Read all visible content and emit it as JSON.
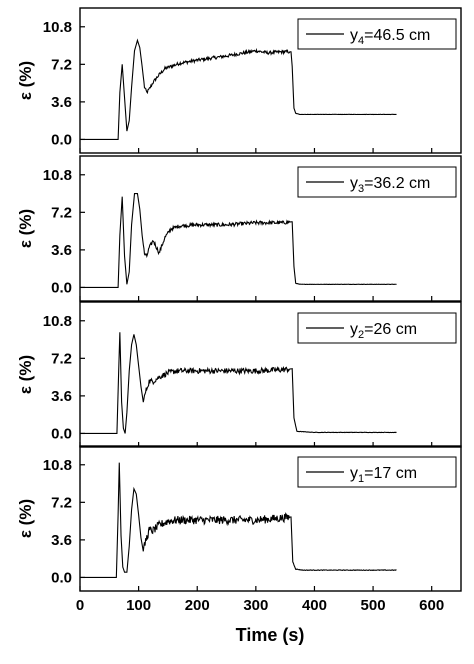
{
  "figure": {
    "xlabel": "Time (s)",
    "x_ticks": [
      0,
      100,
      200,
      300,
      400,
      500,
      600
    ],
    "x_tick_labels": [
      "0",
      "100",
      "200",
      "300",
      "400",
      "500",
      "600"
    ],
    "colors": {
      "line": "#000000",
      "axes": "#000000",
      "background": "#ffffff"
    }
  },
  "chart_data": [
    {
      "type": "line",
      "ylabel": "ε (%)",
      "legend": {
        "main": "y",
        "sub": "4",
        "rest": "=46.5 cm",
        "placement": "top-right"
      },
      "xlim": [
        0,
        650
      ],
      "ylim": [
        -1.3,
        12.6
      ],
      "y_ticks": [
        0,
        3.6,
        7.2,
        10.8
      ],
      "y_tick_labels": [
        "0.0",
        "3.6",
        "7.2",
        "10.8"
      ],
      "grid": false,
      "noise": 0.07,
      "series": [
        {
          "x": [
            0,
            65,
            68,
            72,
            76,
            80,
            84,
            88,
            93,
            98,
            102,
            106,
            110,
            114,
            118,
            125,
            135,
            145,
            155,
            170,
            200,
            250,
            300,
            320,
            345,
            360,
            362,
            365,
            368,
            375,
            400,
            540
          ],
          "y": [
            0.0,
            0.0,
            4.5,
            7.2,
            4.0,
            0.8,
            1.8,
            5.0,
            8.5,
            9.5,
            8.8,
            7.0,
            5.0,
            4.5,
            4.8,
            5.5,
            6.2,
            6.8,
            7.0,
            7.3,
            7.6,
            8.0,
            8.5,
            8.3,
            8.4,
            8.4,
            7.0,
            3.0,
            2.5,
            2.4,
            2.4,
            2.4
          ]
        }
      ]
    },
    {
      "type": "line",
      "ylabel": "ε (%)",
      "legend": {
        "main": "y",
        "sub": "3",
        "rest": "=36.2 cm",
        "placement": "top-right"
      },
      "xlim": [
        0,
        650
      ],
      "ylim": [
        -1.3,
        12.6
      ],
      "y_ticks": [
        0,
        3.6,
        7.2,
        10.8
      ],
      "y_tick_labels": [
        "0.0",
        "3.6",
        "7.2",
        "10.8"
      ],
      "grid": false,
      "noise": 0.08,
      "series": [
        {
          "x": [
            0,
            65,
            68,
            72,
            76,
            80,
            84,
            88,
            93,
            98,
            102,
            106,
            110,
            114,
            118,
            125,
            135,
            145,
            155,
            170,
            200,
            250,
            300,
            345,
            362,
            365,
            368,
            375,
            400,
            540
          ],
          "y": [
            0.0,
            0.0,
            5.0,
            8.7,
            3.0,
            0.3,
            1.5,
            6.0,
            9.0,
            9.0,
            7.5,
            5.0,
            3.2,
            3.0,
            3.8,
            4.5,
            3.3,
            4.8,
            5.6,
            5.9,
            6.0,
            6.0,
            6.2,
            6.2,
            6.3,
            2.0,
            0.4,
            0.3,
            0.3,
            0.3
          ]
        }
      ]
    },
    {
      "type": "line",
      "ylabel": "ε (%)",
      "legend": {
        "main": "y",
        "sub": "2",
        "rest": "=26 cm",
        "placement": "top-right"
      },
      "xlim": [
        0,
        650
      ],
      "ylim": [
        -1.3,
        12.6
      ],
      "y_ticks": [
        0,
        3.6,
        7.2,
        10.8
      ],
      "y_tick_labels": [
        "0.0",
        "3.6",
        "7.2",
        "10.8"
      ],
      "grid": false,
      "noise": 0.12,
      "series": [
        {
          "x": [
            0,
            63,
            66,
            68,
            71,
            74,
            77,
            80,
            84,
            88,
            92,
            96,
            100,
            104,
            108,
            112,
            118,
            125,
            135,
            150,
            165,
            200,
            250,
            300,
            345,
            362,
            365,
            370,
            400,
            540
          ],
          "y": [
            0.0,
            0.0,
            6.0,
            9.7,
            3.0,
            0.5,
            0.0,
            2.0,
            6.0,
            8.5,
            9.5,
            8.5,
            6.5,
            4.5,
            3.0,
            4.0,
            5.0,
            5.0,
            5.4,
            5.8,
            6.0,
            6.0,
            6.0,
            6.0,
            6.1,
            6.2,
            1.5,
            0.2,
            0.1,
            0.1
          ]
        }
      ]
    },
    {
      "type": "line",
      "ylabel": "ε (%)",
      "legend": {
        "main": "y",
        "sub": "1",
        "rest": "=17 cm",
        "placement": "top-right"
      },
      "xlim": [
        0,
        650
      ],
      "ylim": [
        -1.3,
        12.6
      ],
      "y_ticks": [
        0,
        3.6,
        7.2,
        10.8
      ],
      "y_tick_labels": [
        "0.0",
        "3.6",
        "7.2",
        "10.8"
      ],
      "grid": false,
      "noise": 0.18,
      "series": [
        {
          "x": [
            0,
            62,
            65,
            67,
            70,
            73,
            76,
            80,
            84,
            88,
            92,
            96,
            100,
            104,
            108,
            112,
            118,
            125,
            135,
            150,
            165,
            200,
            250,
            300,
            345,
            360,
            363,
            368,
            380,
            400,
            540
          ],
          "y": [
            0.0,
            0.0,
            6.0,
            11.0,
            4.0,
            1.0,
            0.5,
            0.5,
            3.0,
            6.5,
            8.5,
            8.0,
            6.0,
            3.8,
            2.5,
            3.5,
            4.5,
            4.5,
            5.0,
            5.4,
            5.5,
            5.5,
            5.5,
            5.5,
            5.7,
            5.8,
            1.5,
            0.8,
            0.7,
            0.7,
            0.7
          ]
        }
      ]
    }
  ]
}
